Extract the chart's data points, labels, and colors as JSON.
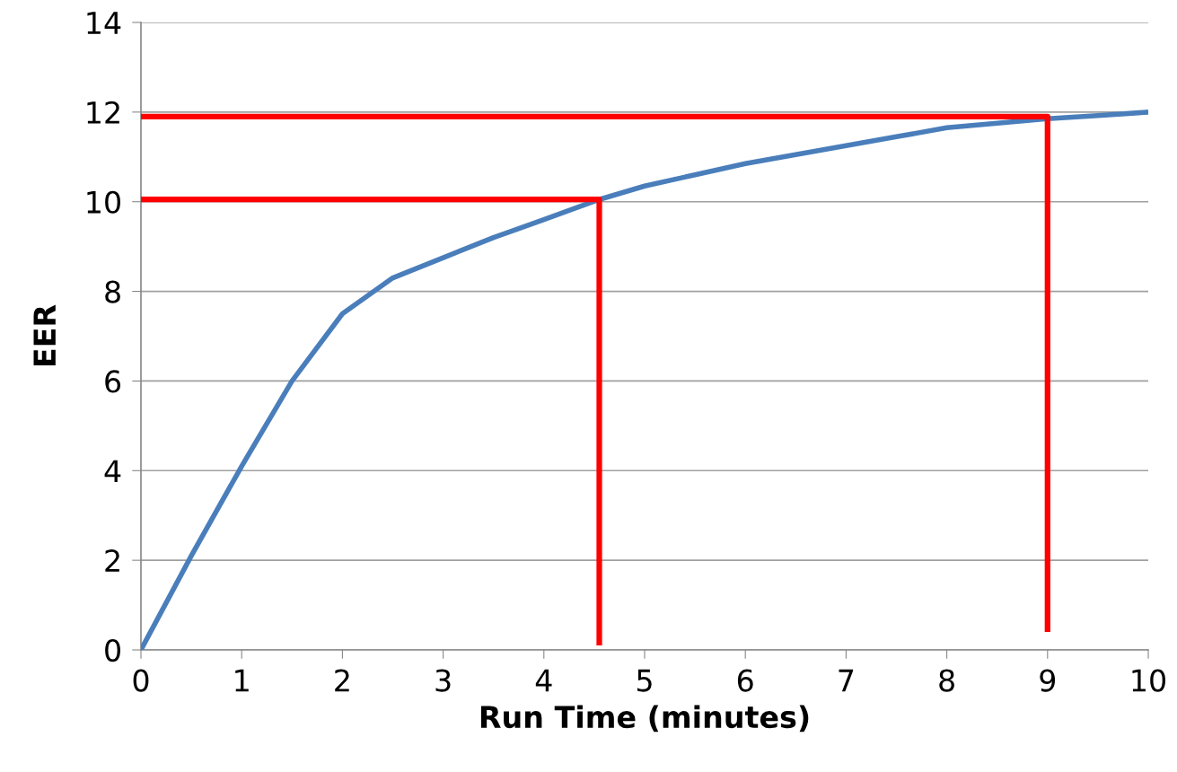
{
  "chart_data": {
    "type": "line",
    "xlabel": "Run Time (minutes)",
    "ylabel": "EER",
    "xlim": [
      0,
      10
    ],
    "xticks": [
      0,
      1,
      2,
      3,
      4,
      5,
      6,
      7,
      8,
      9,
      10
    ],
    "ylim": [
      0,
      14
    ],
    "yticks": [
      0,
      2,
      4,
      6,
      8,
      10,
      12,
      14
    ],
    "grid": "y",
    "legend": false,
    "series": [
      {
        "color": "#4a7ebb",
        "x": [
          0,
          0.5,
          1,
          1.5,
          2,
          2.5,
          3,
          3.5,
          4,
          4.55,
          5,
          5.5,
          6,
          6.5,
          7,
          7.5,
          8,
          8.5,
          9,
          9.5,
          10
        ],
        "values": [
          0,
          2.1,
          4.1,
          6.0,
          7.5,
          8.3,
          8.75,
          9.2,
          9.6,
          10.05,
          10.35,
          10.6,
          10.85,
          11.05,
          11.25,
          11.45,
          11.65,
          11.75,
          11.85,
          11.92,
          12.0
        ]
      },
      {
        "color": "#ff0000",
        "x": [
          0,
          4.55,
          4.55
        ],
        "values": [
          10.05,
          10.05,
          0.1
        ]
      },
      {
        "color": "#ff0000",
        "x": [
          0,
          9,
          9
        ],
        "values": [
          11.9,
          11.9,
          0.4
        ]
      }
    ]
  }
}
